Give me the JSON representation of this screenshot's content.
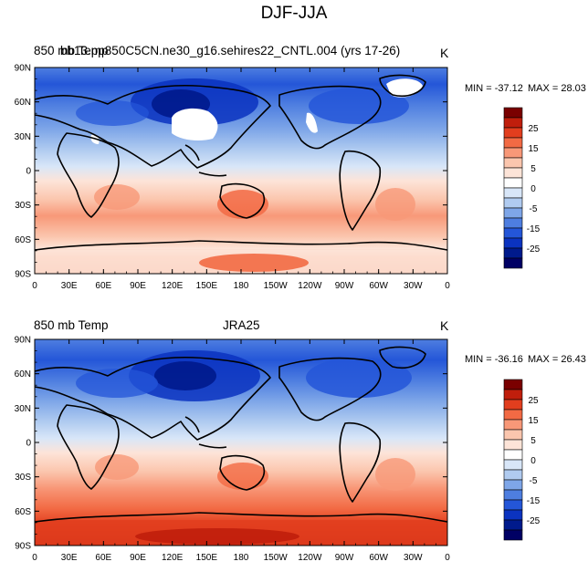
{
  "figure_title": "DJF-JJA",
  "colorbar": {
    "levels": [
      "25",
      "15",
      "5",
      "0",
      "-5",
      "-15",
      "-25"
    ],
    "colors": [
      "#7a0000",
      "#c01e0c",
      "#e23e1e",
      "#f26a44",
      "#f89878",
      "#fbc6ae",
      "#fde4d8",
      "#ffffff",
      "#d8e6f8",
      "#b0cbf0",
      "#7ea6e8",
      "#4e7ee0",
      "#2456d8",
      "#0b33c0",
      "#001a8c",
      "#000064"
    ]
  },
  "chart_data": [
    {
      "type": "heatmap",
      "left_title": "850 mb Temp",
      "overlay_title": "bb13.pp850C5CN.ne30_g16.sehires22_CNTL.004 (yrs 17-26)",
      "unit": "K",
      "min_label": "MIN = -37.12",
      "max_label": "MAX =  28.03",
      "min": -37.12,
      "max": 28.03,
      "x_ticks": [
        "0",
        "30E",
        "60E",
        "90E",
        "120E",
        "150E",
        "180",
        "150W",
        "120W",
        "90W",
        "60W",
        "30W",
        "0"
      ],
      "y_ticks": [
        "90N",
        "60N",
        "30N",
        "0",
        "30S",
        "60S",
        "90S"
      ],
      "has_missing_regions": true
    },
    {
      "type": "heatmap",
      "left_title": "850 mb Temp",
      "center_title": "JRA25",
      "unit": "K",
      "min_label": "MIN = -36.16",
      "max_label": "MAX =  26.43",
      "min": -36.16,
      "max": 26.43,
      "x_ticks": [
        "0",
        "30E",
        "60E",
        "90E",
        "120E",
        "150E",
        "180",
        "150W",
        "120W",
        "90W",
        "60W",
        "30W",
        "0"
      ],
      "y_ticks": [
        "90N",
        "60N",
        "30N",
        "0",
        "30S",
        "60S",
        "90S"
      ],
      "has_missing_regions": false
    }
  ]
}
